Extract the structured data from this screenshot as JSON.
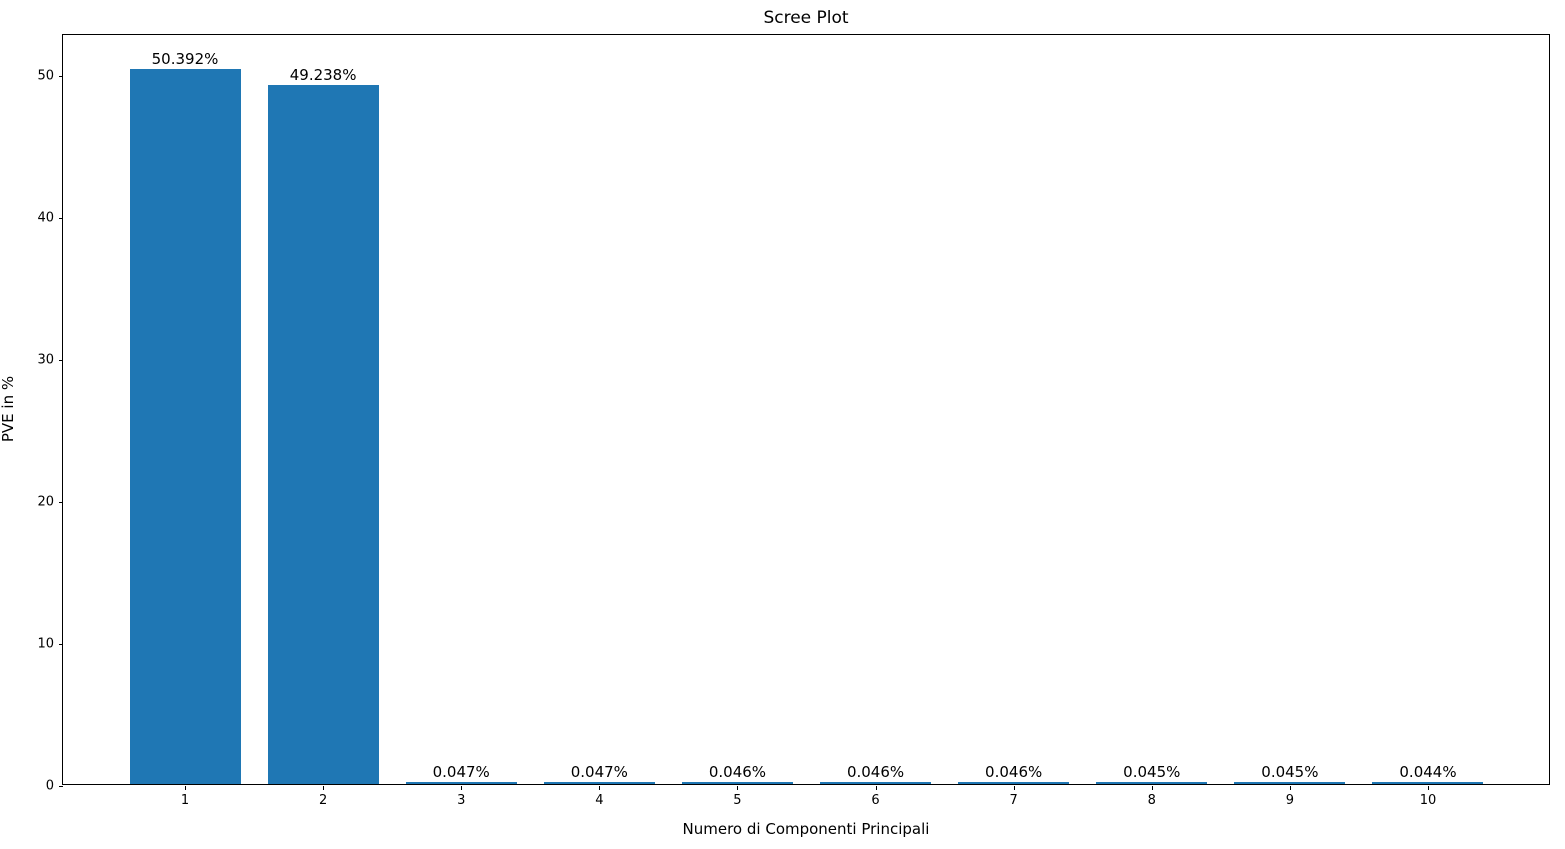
{
  "chart_data": {
    "type": "bar",
    "title": "Scree Plot",
    "xlabel": "Numero di Componenti Principali",
    "ylabel": "PVE in %",
    "categories": [
      "1",
      "2",
      "3",
      "4",
      "5",
      "6",
      "7",
      "8",
      "9",
      "10"
    ],
    "values": [
      50.392,
      49.238,
      0.047,
      0.047,
      0.046,
      0.046,
      0.046,
      0.045,
      0.045,
      0.044
    ],
    "bar_labels": [
      "50.392%",
      "49.238%",
      "0.047%",
      "0.047%",
      "0.046%",
      "0.046%",
      "0.046%",
      "0.045%",
      "0.045%",
      "0.044%"
    ],
    "yticks": [
      "0",
      "10",
      "20",
      "30",
      "40",
      "50"
    ],
    "ytick_values": [
      0,
      10,
      20,
      30,
      40,
      50
    ],
    "ylim": [
      0,
      52.9
    ],
    "bar_color": "#1f77b4",
    "grid": false,
    "legend_position": "none"
  }
}
